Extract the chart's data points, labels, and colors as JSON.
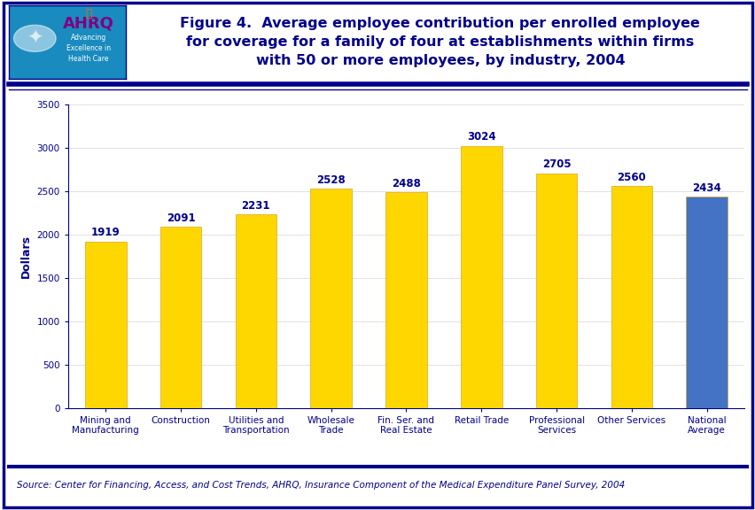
{
  "categories": [
    "Mining and\nManufacturing",
    "Construction",
    "Utilities and\nTransportation",
    "Wholesale\nTrade",
    "Fin. Ser. and\nReal Estate",
    "Retail Trade",
    "Professional\nServices",
    "Other Services",
    "National\nAverage"
  ],
  "values": [
    1919,
    2091,
    2231,
    2528,
    2488,
    3024,
    2705,
    2560,
    2434
  ],
  "bar_colors": [
    "#FFD700",
    "#FFD700",
    "#FFD700",
    "#FFD700",
    "#FFD700",
    "#FFD700",
    "#FFD700",
    "#FFD700",
    "#4472C4"
  ],
  "title_line1": "Figure 4.  Average employee contribution per enrolled employee",
  "title_line2": "for coverage for a family of four at establishments within firms",
  "title_line3": "with 50 or more employees, by industry, 2004",
  "ylabel": "Dollars",
  "ylim": [
    0,
    3500
  ],
  "yticks": [
    0,
    500,
    1000,
    1500,
    2000,
    2500,
    3000,
    3500
  ],
  "source_text": "Source: Center for Financing, Access, and Cost Trends, AHRQ, Insurance Component of the Medical Expenditure Panel Survey, 2004",
  "title_color": "#00008B",
  "axis_color": "#00008B",
  "bar_edge_color": "#DAA520",
  "value_label_color": "#00008B",
  "ylabel_color": "#00008B",
  "source_color": "#00008B",
  "background_color": "#FFFFFF",
  "outer_border_color": "#00008B",
  "divider_color": "#00008B",
  "title_fontsize": 11.5,
  "value_fontsize": 8.5,
  "tick_fontsize": 7.5,
  "ylabel_fontsize": 9,
  "source_fontsize": 7.5
}
